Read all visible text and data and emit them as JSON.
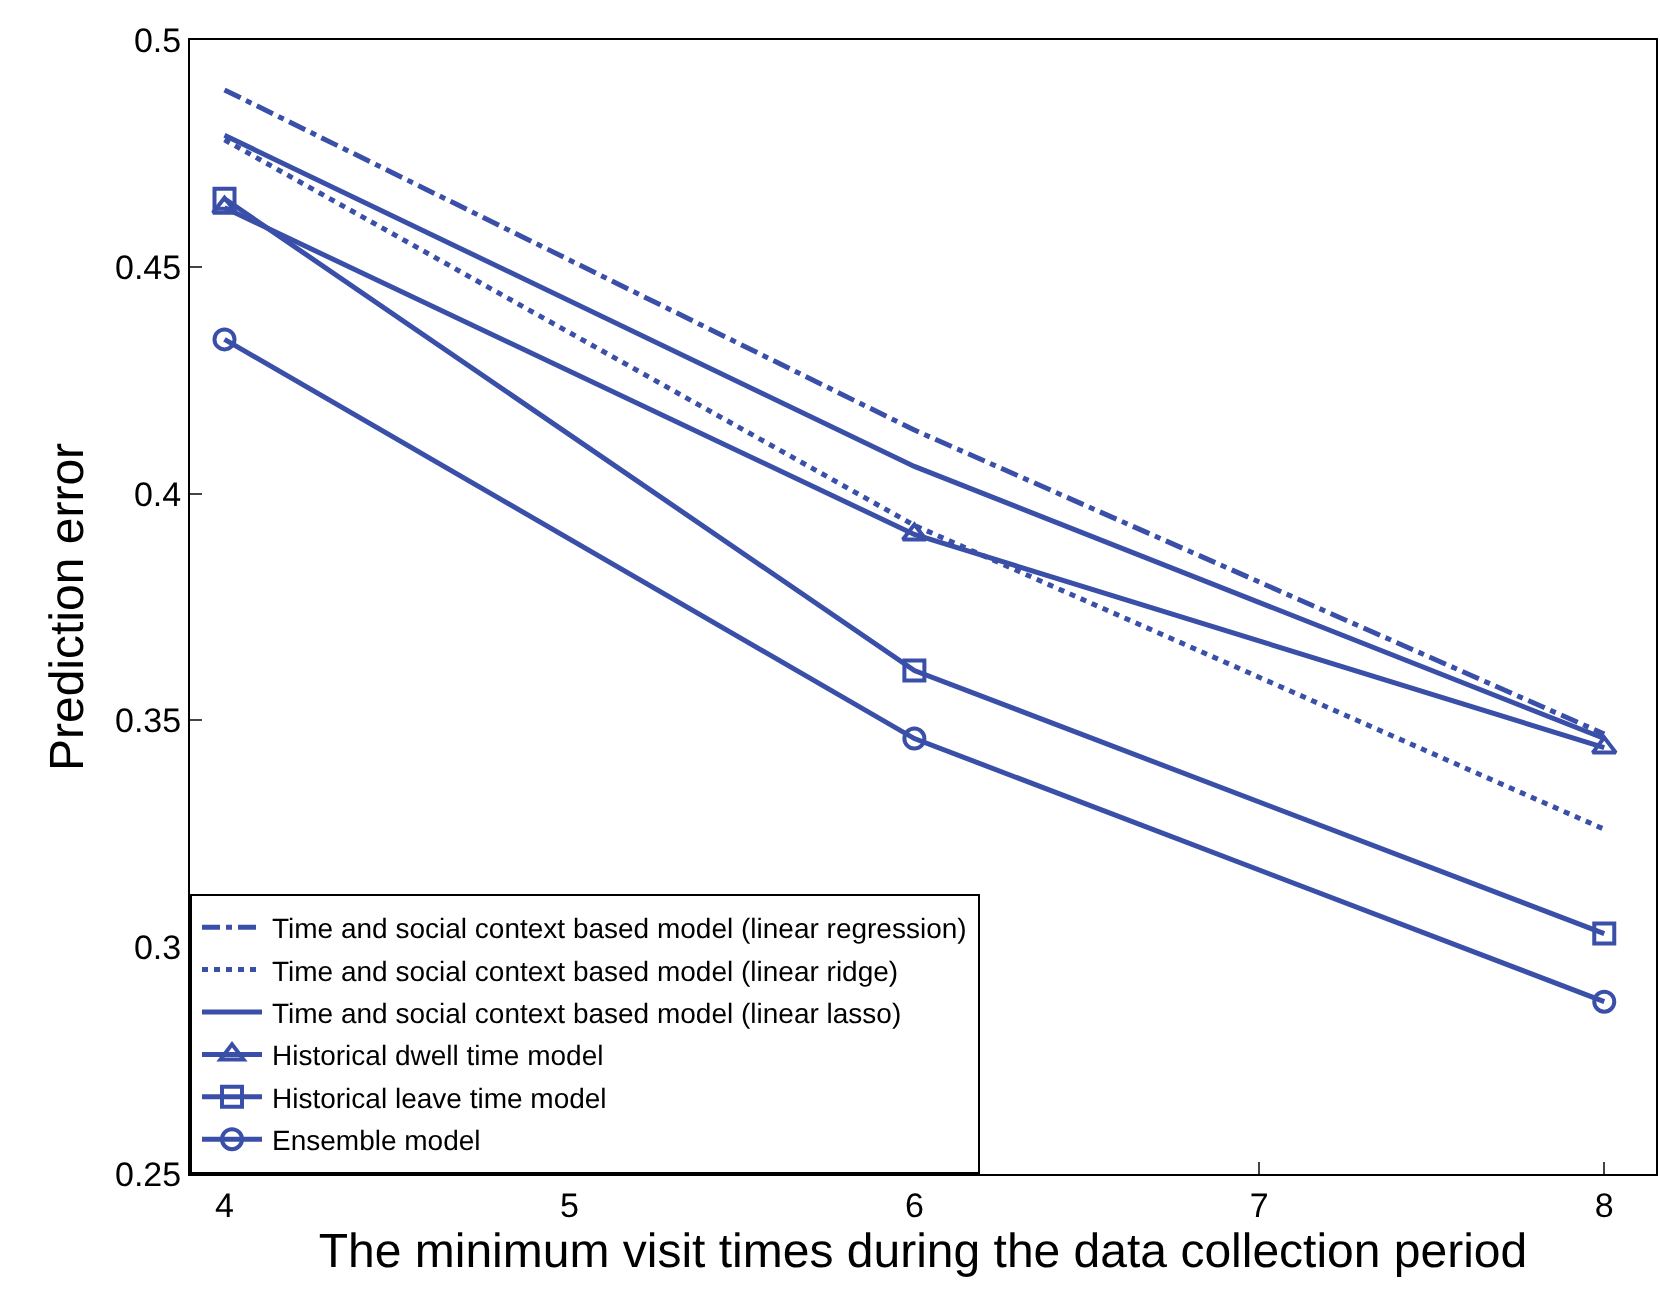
{
  "chart_data": {
    "type": "line",
    "xlabel": "The minimum visit times during the data collection period",
    "ylabel": "Prediction error",
    "x": [
      4,
      6,
      8
    ],
    "xlim": [
      3.9,
      8.15
    ],
    "xticks": [
      4,
      5,
      6,
      7,
      8
    ],
    "ylim": [
      0.25,
      0.5
    ],
    "yticks": [
      0.25,
      0.3,
      0.35,
      0.4,
      0.45,
      0.5
    ],
    "grid": false,
    "legend": "bottom left",
    "series": [
      {
        "name": "Time and social context based model (linear regression)",
        "color": "#3a4fa8",
        "values": [
          0.489,
          0.414,
          0.347
        ],
        "line_style": "dashdot",
        "marker": "none"
      },
      {
        "name": "Time and social context based model (linear ridge)",
        "color": "#3a4fa8",
        "values": [
          0.478,
          0.393,
          0.326
        ],
        "line_style": "dotted",
        "marker": "none"
      },
      {
        "name": "Time and social context based model (linear lasso)",
        "color": "#3a4fa8",
        "values": [
          0.479,
          0.406,
          0.346
        ],
        "line_style": "solid",
        "marker": "none"
      },
      {
        "name": "Historical dwell time model",
        "color": "#3a4fa8",
        "values": [
          0.463,
          0.391,
          0.344
        ],
        "line_style": "solid",
        "marker": "triangle"
      },
      {
        "name": "Historical leave time model",
        "color": "#3a4fa8",
        "values": [
          0.465,
          0.361,
          0.303
        ],
        "line_style": "solid",
        "marker": "square"
      },
      {
        "name": "Ensemble model",
        "color": "#3a4fa8",
        "values": [
          0.434,
          0.346,
          0.288
        ],
        "line_style": "solid",
        "marker": "circle"
      }
    ]
  }
}
